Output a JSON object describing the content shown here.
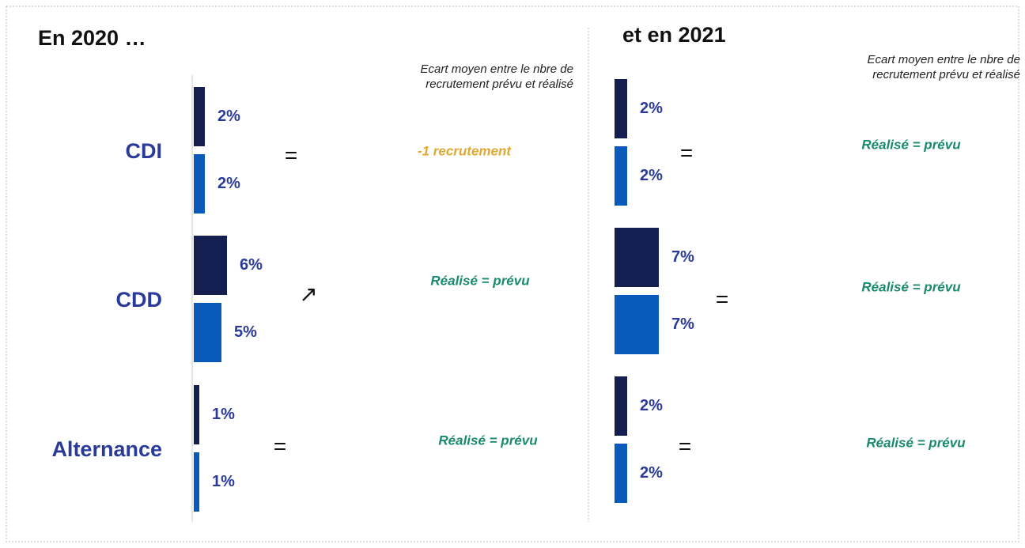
{
  "chart_data": [
    {
      "type": "bar",
      "title": "En 2020 …",
      "note_header": [
        "Ecart moyen entre le nbre de",
        "recrutement prévu et réalisé"
      ],
      "categories": [
        "CDI",
        "CDD",
        "Alternance"
      ],
      "series": [
        {
          "color": "#141e50",
          "values": [
            2,
            6,
            1
          ],
          "value_labels": [
            "2%",
            "6%",
            "1%"
          ]
        },
        {
          "color": "#0a5ab9",
          "values": [
            2,
            5,
            1
          ],
          "value_labels": [
            "2%",
            "5%",
            "1%"
          ]
        }
      ],
      "comparisons": [
        "=",
        "↗",
        "="
      ],
      "notes": [
        "-1 recrutement",
        "Réalisé = prévu",
        "Réalisé = prévu"
      ],
      "note_colors": [
        "#e0a82e",
        "#1a8a6e",
        "#1a8a6e"
      ]
    },
    {
      "type": "bar",
      "title": "et en 2021",
      "note_header": [
        "Ecart moyen entre le nbre de",
        "recrutement prévu et réalisé"
      ],
      "categories": [
        null,
        null,
        null
      ],
      "series": [
        {
          "color": "#141e50",
          "values": [
            2,
            7,
            2
          ],
          "value_labels": [
            "2%",
            "7%",
            "2%"
          ]
        },
        {
          "color": "#0a5ab9",
          "values": [
            2,
            7,
            2
          ],
          "value_labels": [
            "2%",
            "7%",
            "2%"
          ]
        }
      ],
      "comparisons": [
        "=",
        "=",
        "="
      ],
      "notes": [
        "Réalisé = prévu",
        "Réalisé = prévu",
        "Réalisé = prévu"
      ],
      "note_colors": [
        "#1a8a6e",
        "#1a8a6e",
        "#1a8a6e"
      ]
    }
  ]
}
